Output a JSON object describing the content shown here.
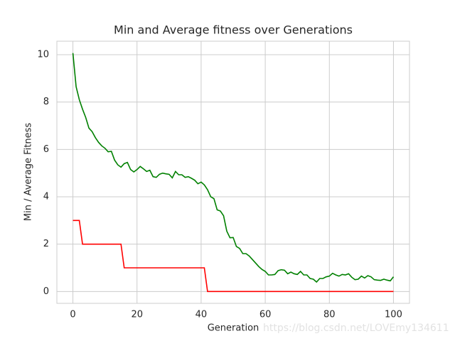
{
  "chart_data": {
    "type": "line",
    "title": "Min and Average fitness over Generations",
    "x_label": "Generation",
    "y_label": "Min / Average Fitness",
    "watermark": "https://blog.csdn.net/LOVEmy134611",
    "x": [
      0,
      1,
      2,
      3,
      4,
      5,
      6,
      7,
      8,
      9,
      10,
      11,
      12,
      13,
      14,
      15,
      16,
      17,
      18,
      19,
      20,
      21,
      22,
      23,
      24,
      25,
      26,
      27,
      28,
      29,
      30,
      31,
      32,
      33,
      34,
      35,
      36,
      37,
      38,
      39,
      40,
      41,
      42,
      43,
      44,
      45,
      46,
      47,
      48,
      49,
      50,
      51,
      52,
      53,
      54,
      55,
      56,
      57,
      58,
      59,
      60,
      61,
      62,
      63,
      64,
      65,
      66,
      67,
      68,
      69,
      70,
      71,
      72,
      73,
      74,
      75,
      76,
      77,
      78,
      79,
      80,
      81,
      82,
      83,
      84,
      85,
      86,
      87,
      88,
      89,
      90,
      91,
      92,
      93,
      94,
      95,
      96,
      97,
      98,
      99,
      100
    ],
    "series": [
      {
        "color": "#ff0000",
        "values": [
          3,
          3,
          3,
          2,
          2,
          2,
          2,
          2,
          2,
          2,
          2,
          2,
          2,
          2,
          2,
          2,
          1,
          1,
          1,
          1,
          1,
          1,
          1,
          1,
          1,
          1,
          1,
          1,
          1,
          1,
          1,
          1,
          1,
          1,
          1,
          1,
          1,
          1,
          1,
          1,
          1,
          1,
          0,
          0,
          0,
          0,
          0,
          0,
          0,
          0,
          0,
          0,
          0,
          0,
          0,
          0,
          0,
          0,
          0,
          0,
          0,
          0,
          0,
          0,
          0,
          0,
          0,
          0,
          0,
          0,
          0,
          0,
          0,
          0,
          0,
          0,
          0,
          0,
          0,
          0,
          0,
          0,
          0,
          0,
          0,
          0,
          0,
          0,
          0,
          0,
          0,
          0,
          0,
          0,
          0,
          0,
          0,
          0,
          0,
          0,
          0
        ]
      },
      {
        "color": "#008000",
        "values": [
          10.07,
          8.65,
          8.1,
          7.7,
          7.35,
          6.9,
          6.75,
          6.5,
          6.3,
          6.15,
          6.05,
          5.9,
          5.92,
          5.55,
          5.35,
          5.25,
          5.4,
          5.45,
          5.15,
          5.05,
          5.15,
          5.28,
          5.18,
          5.07,
          5.12,
          4.85,
          4.82,
          4.95,
          5.0,
          4.97,
          4.95,
          4.8,
          5.07,
          4.93,
          4.93,
          4.82,
          4.85,
          4.78,
          4.7,
          4.55,
          4.62,
          4.5,
          4.3,
          4.0,
          3.92,
          3.45,
          3.4,
          3.2,
          2.55,
          2.27,
          2.28,
          1.9,
          1.82,
          1.6,
          1.6,
          1.5,
          1.35,
          1.2,
          1.05,
          0.93,
          0.85,
          0.7,
          0.7,
          0.72,
          0.88,
          0.92,
          0.9,
          0.75,
          0.82,
          0.75,
          0.72,
          0.85,
          0.7,
          0.7,
          0.55,
          0.52,
          0.4,
          0.55,
          0.55,
          0.62,
          0.65,
          0.77,
          0.7,
          0.65,
          0.72,
          0.7,
          0.75,
          0.6,
          0.5,
          0.52,
          0.65,
          0.57,
          0.67,
          0.62,
          0.5,
          0.48,
          0.47,
          0.52,
          0.48,
          0.45,
          0.62
        ]
      }
    ],
    "xlim": [
      -5,
      105
    ],
    "ylim": [
      -0.5,
      10.57
    ],
    "xticks": [
      0,
      20,
      40,
      60,
      80,
      100
    ],
    "yticks": [
      0,
      2,
      4,
      6,
      8,
      10
    ],
    "grid": true
  }
}
